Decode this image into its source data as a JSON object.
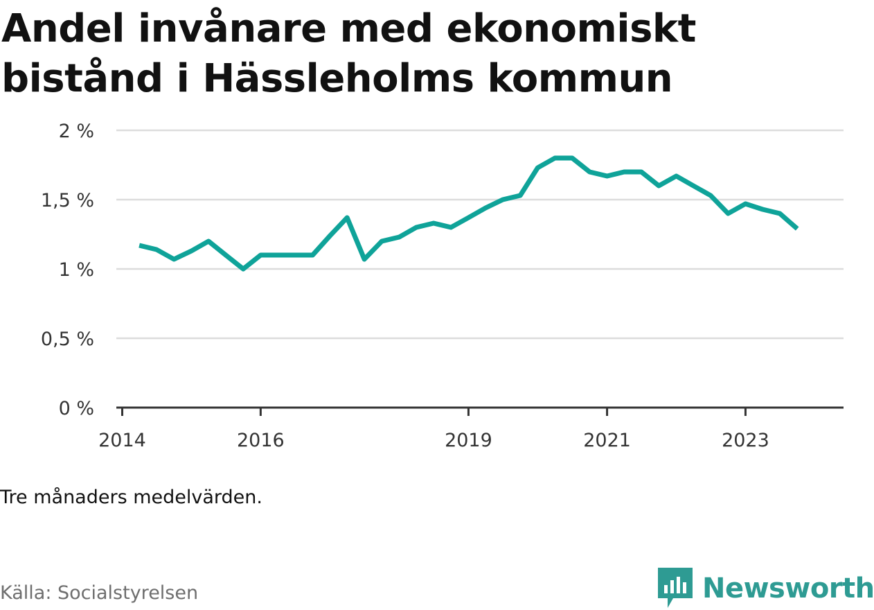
{
  "title": "Andel invånare med ekonomiskt bistånd i Hässleholms kommun",
  "note": "Tre månaders medelvärden.",
  "source": "Källa: Socialstyrelsen",
  "brand": {
    "name": "Newsworthy",
    "icon": "newsworthy-logo-icon",
    "color": "#2e9b93"
  },
  "colors": {
    "line": "#0fa399",
    "grid": "#dcdcdc",
    "axis": "#333333"
  },
  "chart_data": {
    "type": "line",
    "title": "Andel invånare med ekonomiskt bistånd i Hässleholms kommun",
    "xlabel": "",
    "ylabel": "",
    "grid": true,
    "legend": "none",
    "ylim": [
      0,
      2
    ],
    "xlim": [
      "2013-12-01",
      "2024-06-01"
    ],
    "y_ticks": [
      0,
      0.5,
      1,
      1.5,
      2
    ],
    "y_tick_labels": [
      "0 %",
      "0,5 %",
      "1 %",
      "1,5 %",
      "2 %"
    ],
    "x_ticks": [
      "2014-01-01",
      "2016-01-01",
      "2019-01-01",
      "2021-01-01",
      "2023-01-01"
    ],
    "x_tick_labels": [
      "2014",
      "2016",
      "2019",
      "2021",
      "2023"
    ],
    "series": [
      {
        "values": [
          {
            "x": "2014-04-01",
            "y": 1.17
          },
          {
            "x": "2014-07-01",
            "y": 1.14
          },
          {
            "x": "2014-10-01",
            "y": 1.07
          },
          {
            "x": "2015-01-01",
            "y": 1.13
          },
          {
            "x": "2015-04-01",
            "y": 1.2
          },
          {
            "x": "2015-07-01",
            "y": 1.1
          },
          {
            "x": "2015-10-01",
            "y": 1.0
          },
          {
            "x": "2016-01-01",
            "y": 1.1
          },
          {
            "x": "2016-04-01",
            "y": 1.1
          },
          {
            "x": "2016-07-01",
            "y": 1.1
          },
          {
            "x": "2016-10-01",
            "y": 1.1
          },
          {
            "x": "2017-01-01",
            "y": 1.24
          },
          {
            "x": "2017-04-01",
            "y": 1.37
          },
          {
            "x": "2017-07-01",
            "y": 1.07
          },
          {
            "x": "2017-10-01",
            "y": 1.2
          },
          {
            "x": "2018-01-01",
            "y": 1.23
          },
          {
            "x": "2018-04-01",
            "y": 1.3
          },
          {
            "x": "2018-07-01",
            "y": 1.33
          },
          {
            "x": "2018-10-01",
            "y": 1.3
          },
          {
            "x": "2019-01-01",
            "y": 1.37
          },
          {
            "x": "2019-04-01",
            "y": 1.44
          },
          {
            "x": "2019-07-01",
            "y": 1.5
          },
          {
            "x": "2019-10-01",
            "y": 1.53
          },
          {
            "x": "2020-01-01",
            "y": 1.73
          },
          {
            "x": "2020-04-01",
            "y": 1.8
          },
          {
            "x": "2020-07-01",
            "y": 1.8
          },
          {
            "x": "2020-10-01",
            "y": 1.7
          },
          {
            "x": "2021-01-01",
            "y": 1.67
          },
          {
            "x": "2021-04-01",
            "y": 1.7
          },
          {
            "x": "2021-07-01",
            "y": 1.7
          },
          {
            "x": "2021-10-01",
            "y": 1.6
          },
          {
            "x": "2022-01-01",
            "y": 1.67
          },
          {
            "x": "2022-04-01",
            "y": 1.6
          },
          {
            "x": "2022-07-01",
            "y": 1.53
          },
          {
            "x": "2022-10-01",
            "y": 1.4
          },
          {
            "x": "2023-01-01",
            "y": 1.47
          },
          {
            "x": "2023-04-01",
            "y": 1.43
          },
          {
            "x": "2023-07-01",
            "y": 1.4
          },
          {
            "x": "2023-10-01",
            "y": 1.29
          }
        ]
      }
    ]
  }
}
